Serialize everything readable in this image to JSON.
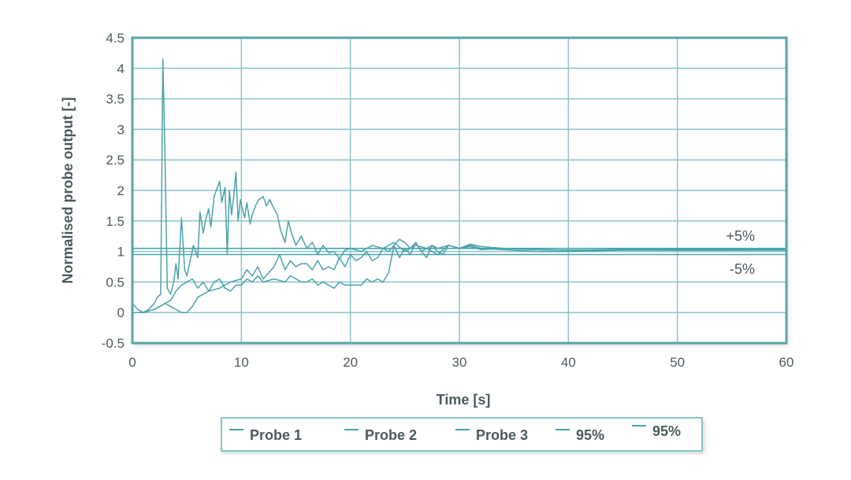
{
  "chart_data": {
    "type": "line",
    "xlabel": "Time [s]",
    "ylabel": "Normalised probe output [-]",
    "xlim": [
      0,
      60
    ],
    "ylim": [
      -0.5,
      4.5
    ],
    "x_ticks": [
      0,
      10,
      20,
      30,
      40,
      50,
      60
    ],
    "y_ticks": [
      -0.5,
      0,
      0.5,
      1,
      1.5,
      2,
      2.5,
      3,
      3.5,
      4,
      4.5
    ],
    "y_tick_labels": [
      "-0.5",
      "0",
      "0.5",
      "1",
      "1.5",
      "2",
      "2.5",
      "3",
      "3.5",
      "4",
      "4.5"
    ],
    "grid": true,
    "legend_position": "bottom",
    "colors": {
      "line": "#4aa3ab",
      "frame": "#5aa3aa",
      "grid": "#8cc3c8",
      "text": "#4a5a5e"
    },
    "band_labels": {
      "upper": "+5%",
      "lower": "-5%"
    },
    "series": [
      {
        "name": "Probe 1",
        "x": [
          0,
          0.5,
          1,
          1.5,
          2,
          2.3,
          2.6,
          2.8,
          3.0,
          3.2,
          3.5,
          3.8,
          4.0,
          4.2,
          4.5,
          4.8,
          5.0,
          5.3,
          5.6,
          6.0,
          6.2,
          6.5,
          6.7,
          7.0,
          7.2,
          7.5,
          7.8,
          8.0,
          8.2,
          8.5,
          8.7,
          8.9,
          9.1,
          9.3,
          9.5,
          9.7,
          9.9,
          10.1,
          10.3,
          10.5,
          10.8,
          11.0,
          11.3,
          11.6,
          12.0,
          12.3,
          12.6,
          13.0,
          13.3,
          13.6,
          14.0,
          14.3,
          14.6,
          15.0,
          15.5,
          16.0,
          16.5,
          17.0,
          17.5,
          18.0,
          18.5,
          19.0,
          19.5,
          20.0,
          21.0,
          22.0,
          23.0,
          24.0,
          25.0,
          26.0,
          27.0,
          28.0,
          29.0,
          30.0,
          31.0,
          32.0,
          34.0,
          37.0,
          40.0,
          45.0,
          50.0,
          55.0,
          60.0
        ],
        "values": [
          0.15,
          0.05,
          0.0,
          0.05,
          0.15,
          0.25,
          0.3,
          4.15,
          2.5,
          0.4,
          0.3,
          0.5,
          0.8,
          0.55,
          1.55,
          0.7,
          0.6,
          0.85,
          1.1,
          0.9,
          1.65,
          1.3,
          1.5,
          1.7,
          1.4,
          1.9,
          2.05,
          2.15,
          1.8,
          2.05,
          0.95,
          2.0,
          1.6,
          1.9,
          2.3,
          1.5,
          1.85,
          1.7,
          1.55,
          1.8,
          1.45,
          1.6,
          1.75,
          1.85,
          1.9,
          1.75,
          1.85,
          1.7,
          1.6,
          1.35,
          1.15,
          1.5,
          1.3,
          1.1,
          1.25,
          1.05,
          1.15,
          0.95,
          1.1,
          0.98,
          1.0,
          0.88,
          1.02,
          1.05,
          1.0,
          1.1,
          1.05,
          1.15,
          1.0,
          1.1,
          1.05,
          0.95,
          1.1,
          1.05,
          1.08,
          1.03,
          1.05,
          1.03,
          1.02,
          1.03,
          1.02,
          1.02,
          1.03
        ]
      },
      {
        "name": "Probe 2",
        "x": [
          0,
          1,
          2,
          2.5,
          3,
          3.5,
          4,
          4.5,
          5,
          5.5,
          6,
          6.5,
          7,
          7.5,
          8,
          8.5,
          9,
          9.5,
          10,
          10.5,
          11,
          11.5,
          12,
          13,
          14,
          14.5,
          15,
          15.5,
          16,
          16.5,
          17,
          17.5,
          18,
          18.5,
          19,
          19.5,
          20,
          21,
          21.5,
          22,
          22.5,
          23,
          23.5,
          24,
          24.5,
          25,
          25.5,
          26,
          26.5,
          27,
          27.5,
          28,
          28.5,
          29,
          30,
          31,
          32,
          34,
          37,
          40,
          45,
          50,
          55,
          60
        ],
        "values": [
          0.0,
          0.0,
          0.05,
          0.1,
          0.15,
          0.2,
          0.35,
          0.45,
          0.5,
          0.55,
          0.4,
          0.5,
          0.35,
          0.5,
          0.55,
          0.4,
          0.35,
          0.45,
          0.45,
          0.55,
          0.5,
          0.6,
          0.5,
          0.55,
          0.5,
          0.6,
          0.55,
          0.5,
          0.5,
          0.55,
          0.45,
          0.5,
          0.45,
          0.4,
          0.5,
          0.45,
          0.45,
          0.45,
          0.55,
          0.5,
          0.55,
          0.5,
          0.65,
          1.1,
          0.9,
          1.05,
          0.95,
          1.15,
          1.0,
          0.9,
          1.1,
          1.0,
          0.95,
          1.1,
          1.05,
          1.1,
          1.05,
          1.03,
          1.0,
          1.0,
          1.02,
          1.02,
          1.02,
          1.02
        ]
      },
      {
        "name": "Probe 3",
        "x": [
          0,
          1,
          2,
          2.5,
          3,
          3.5,
          4,
          4.5,
          5,
          5.5,
          6,
          7,
          8,
          9,
          10,
          10.5,
          11,
          11.5,
          12,
          12.5,
          13,
          13.5,
          14,
          14.5,
          15,
          15.5,
          16,
          16.5,
          17,
          17.5,
          18,
          18.5,
          19,
          19.5,
          20,
          20.5,
          21,
          21.5,
          22,
          22.5,
          23,
          23.5,
          24,
          24.5,
          25,
          25.5,
          26,
          26.5,
          27,
          27.5,
          28,
          29,
          30,
          31,
          32,
          34,
          37,
          40,
          45,
          50,
          55,
          60
        ],
        "values": [
          0.0,
          0.0,
          0.05,
          0.1,
          0.15,
          0.1,
          0.05,
          0.0,
          0.0,
          0.1,
          0.25,
          0.35,
          0.4,
          0.5,
          0.55,
          0.7,
          0.6,
          0.75,
          0.55,
          0.65,
          0.75,
          0.95,
          0.7,
          0.85,
          0.75,
          0.8,
          0.8,
          0.7,
          0.85,
          0.7,
          0.75,
          0.7,
          0.9,
          0.75,
          0.95,
          0.85,
          0.9,
          1.0,
          0.85,
          0.9,
          1.05,
          1.0,
          1.1,
          1.2,
          1.15,
          1.05,
          1.15,
          1.0,
          1.05,
          1.1,
          1.05,
          1.1,
          1.05,
          1.12,
          1.08,
          1.05,
          1.03,
          1.02,
          1.03,
          1.03,
          1.03,
          1.03
        ]
      },
      {
        "name": "95%",
        "x": [
          0,
          60
        ],
        "values": [
          1.05,
          1.05
        ]
      },
      {
        "name": "95%",
        "x": [
          0,
          60
        ],
        "values": [
          0.95,
          0.95
        ]
      }
    ]
  }
}
